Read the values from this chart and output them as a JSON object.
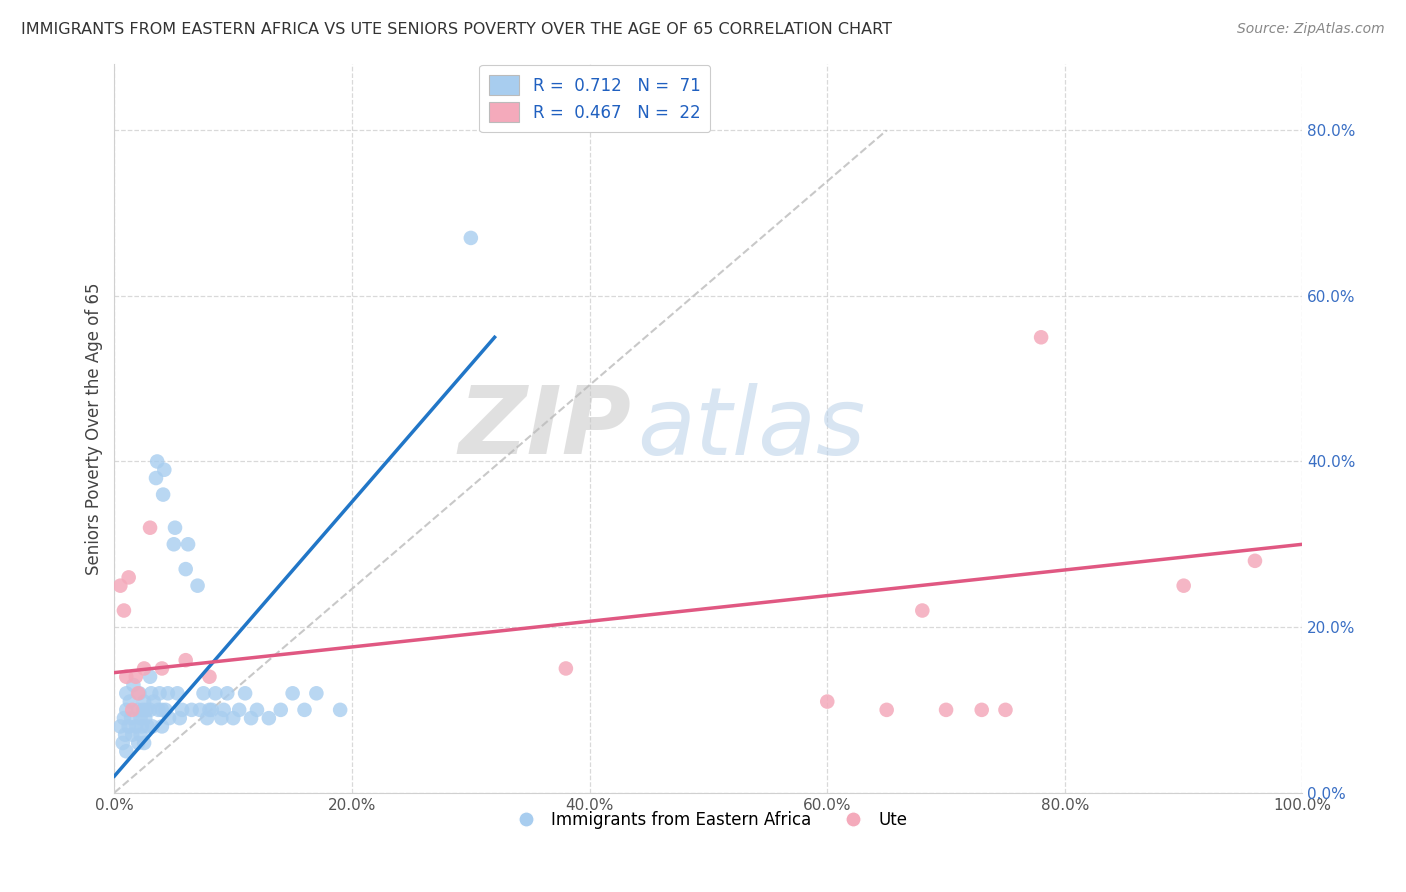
{
  "title": "IMMIGRANTS FROM EASTERN AFRICA VS UTE SENIORS POVERTY OVER THE AGE OF 65 CORRELATION CHART",
  "source": "Source: ZipAtlas.com",
  "ylabel": "Seniors Poverty Over the Age of 65",
  "xlim": [
    0,
    1.0
  ],
  "ylim": [
    0.0,
    0.88
  ],
  "xticks": [
    0.0,
    0.2,
    0.4,
    0.6,
    0.8,
    1.0
  ],
  "yticks": [
    0.0,
    0.2,
    0.4,
    0.6,
    0.8
  ],
  "ytick_labels": [
    "0.0%",
    "20.0%",
    "40.0%",
    "60.0%",
    "80.0%"
  ],
  "xtick_labels": [
    "0.0%",
    "20.0%",
    "40.0%",
    "60.0%",
    "80.0%",
    "100.0%"
  ],
  "legend_blue_r": "0.712",
  "legend_blue_n": "71",
  "legend_pink_r": "0.467",
  "legend_pink_n": "22",
  "blue_color": "#A8CDEF",
  "pink_color": "#F4AABB",
  "blue_line_color": "#2176C7",
  "pink_line_color": "#E05882",
  "watermark_zip": "ZIP",
  "watermark_atlas": "atlas",
  "blue_scatter_x": [
    0.005,
    0.007,
    0.008,
    0.009,
    0.01,
    0.01,
    0.01,
    0.012,
    0.013,
    0.014,
    0.015,
    0.016,
    0.018,
    0.02,
    0.02,
    0.021,
    0.022,
    0.022,
    0.023,
    0.024,
    0.025,
    0.025,
    0.026,
    0.027,
    0.028,
    0.03,
    0.03,
    0.031,
    0.032,
    0.033,
    0.035,
    0.036,
    0.037,
    0.038,
    0.04,
    0.04,
    0.041,
    0.042,
    0.043,
    0.045,
    0.046,
    0.05,
    0.051,
    0.053,
    0.055,
    0.057,
    0.06,
    0.062,
    0.065,
    0.07,
    0.072,
    0.075,
    0.078,
    0.08,
    0.082,
    0.085,
    0.09,
    0.092,
    0.095,
    0.1,
    0.105,
    0.11,
    0.115,
    0.12,
    0.13,
    0.14,
    0.15,
    0.16,
    0.17,
    0.19,
    0.3
  ],
  "blue_scatter_y": [
    0.08,
    0.06,
    0.09,
    0.07,
    0.1,
    0.12,
    0.05,
    0.08,
    0.11,
    0.09,
    0.07,
    0.13,
    0.08,
    0.06,
    0.1,
    0.12,
    0.07,
    0.09,
    0.08,
    0.1,
    0.06,
    0.11,
    0.09,
    0.1,
    0.08,
    0.14,
    0.1,
    0.12,
    0.08,
    0.11,
    0.38,
    0.4,
    0.1,
    0.12,
    0.08,
    0.1,
    0.36,
    0.39,
    0.1,
    0.12,
    0.09,
    0.3,
    0.32,
    0.12,
    0.09,
    0.1,
    0.27,
    0.3,
    0.1,
    0.25,
    0.1,
    0.12,
    0.09,
    0.1,
    0.1,
    0.12,
    0.09,
    0.1,
    0.12,
    0.09,
    0.1,
    0.12,
    0.09,
    0.1,
    0.09,
    0.1,
    0.12,
    0.1,
    0.12,
    0.1,
    0.67
  ],
  "pink_scatter_x": [
    0.005,
    0.008,
    0.01,
    0.012,
    0.015,
    0.018,
    0.02,
    0.025,
    0.03,
    0.04,
    0.06,
    0.08,
    0.38,
    0.6,
    0.65,
    0.68,
    0.7,
    0.73,
    0.75,
    0.78,
    0.9,
    0.96
  ],
  "pink_scatter_y": [
    0.25,
    0.22,
    0.14,
    0.26,
    0.1,
    0.14,
    0.12,
    0.15,
    0.32,
    0.15,
    0.16,
    0.14,
    0.15,
    0.11,
    0.1,
    0.22,
    0.1,
    0.1,
    0.1,
    0.55,
    0.25,
    0.28
  ],
  "blue_line_x0": 0.0,
  "blue_line_x1": 0.32,
  "blue_line_y0": 0.02,
  "blue_line_y1": 0.55,
  "pink_line_x0": 0.0,
  "pink_line_x1": 1.0,
  "pink_line_y0": 0.145,
  "pink_line_y1": 0.3
}
